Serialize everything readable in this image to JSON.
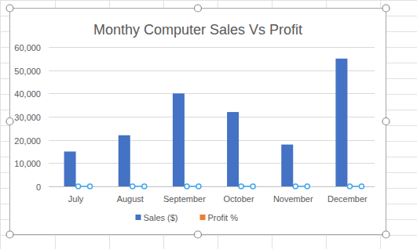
{
  "chart_data": {
    "type": "bar",
    "title": "Monthy Computer Sales Vs Profit",
    "categories": [
      "July",
      "August",
      "September",
      "October",
      "November",
      "December"
    ],
    "series": [
      {
        "name": "Sales ($)",
        "color": "#4472c4",
        "values": [
          15000,
          22000,
          40000,
          32000,
          18000,
          55000
        ]
      },
      {
        "name": "Profit %",
        "color": "#ed7d31",
        "values": [
          0,
          0,
          0,
          0,
          0,
          0
        ]
      }
    ],
    "ylim": [
      0,
      60000
    ],
    "yticks": [
      0,
      {
        "value": 10000,
        "label": "10,000"
      },
      {
        "value": 20000,
        "label": "20,000"
      },
      {
        "value": 30000,
        "label": "30,000"
      },
      {
        "value": 40000,
        "label": "40,000"
      },
      {
        "value": 50000,
        "label": "50,000"
      },
      {
        "value": 60000,
        "label": "60,000"
      }
    ],
    "grid": true,
    "legend": "bottom"
  }
}
